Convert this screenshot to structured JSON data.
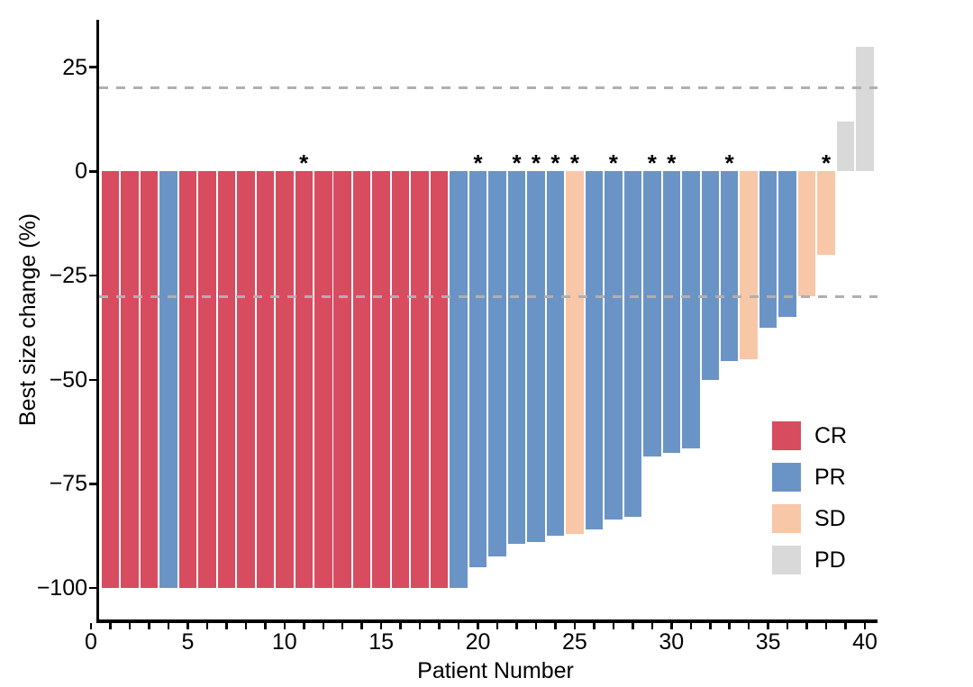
{
  "figure": {
    "background": "#ffffff",
    "star_symbol": "*"
  },
  "chart_data": {
    "type": "bar",
    "subtype": "waterfall",
    "title": "",
    "xlabel": "Patient Number",
    "ylabel": "Best size change (%)",
    "grid": "off",
    "legend_position": "inside-right",
    "x_axis": {
      "min": 0,
      "max": 40,
      "minor_tick_step": 1,
      "major_tick_step": 5,
      "major_tick_labels": [
        "0",
        "5",
        "10",
        "15",
        "20",
        "25",
        "30",
        "35",
        "40"
      ]
    },
    "y_axis": {
      "range": [
        -108,
        36
      ],
      "ticks": [
        {
          "label": "25",
          "value": 25
        },
        {
          "label": "0",
          "value": 0
        },
        {
          "label": "−25",
          "value": -25
        },
        {
          "label": "−50",
          "value": -50
        },
        {
          "label": "−75",
          "value": -75
        },
        {
          "label": "−100",
          "value": -100
        }
      ]
    },
    "reference_lines": [
      {
        "value": 20,
        "style": "dashed",
        "color": "#b0b0b0"
      },
      {
        "value": -30,
        "style": "dashed",
        "color": "#b0b0b0"
      }
    ],
    "legend": [
      {
        "code": "CR",
        "label": "CR",
        "color": "#d84c60"
      },
      {
        "code": "PR",
        "label": "PR",
        "color": "#6b94c6"
      },
      {
        "code": "SD",
        "label": "SD",
        "color": "#f8c7a7"
      },
      {
        "code": "PD",
        "label": "PD",
        "color": "#d9d9d9"
      }
    ],
    "colors_by_response": {
      "CR": "#d84c60",
      "PR": "#6b94c6",
      "SD": "#f8c7a7",
      "PD": "#d9d9d9"
    },
    "patients": [
      {
        "n": 1,
        "value": -100,
        "response": "CR",
        "star": false
      },
      {
        "n": 2,
        "value": -100,
        "response": "CR",
        "star": false
      },
      {
        "n": 3,
        "value": -100,
        "response": "CR",
        "star": false
      },
      {
        "n": 4,
        "value": -100,
        "response": "PR",
        "star": false
      },
      {
        "n": 5,
        "value": -100,
        "response": "CR",
        "star": false
      },
      {
        "n": 6,
        "value": -100,
        "response": "CR",
        "star": false
      },
      {
        "n": 7,
        "value": -100,
        "response": "CR",
        "star": false
      },
      {
        "n": 8,
        "value": -100,
        "response": "CR",
        "star": false
      },
      {
        "n": 9,
        "value": -100,
        "response": "CR",
        "star": false
      },
      {
        "n": 10,
        "value": -100,
        "response": "CR",
        "star": false
      },
      {
        "n": 11,
        "value": -100,
        "response": "CR",
        "star": true
      },
      {
        "n": 12,
        "value": -100,
        "response": "CR",
        "star": false
      },
      {
        "n": 13,
        "value": -100,
        "response": "CR",
        "star": false
      },
      {
        "n": 14,
        "value": -100,
        "response": "CR",
        "star": false
      },
      {
        "n": 15,
        "value": -100,
        "response": "CR",
        "star": false
      },
      {
        "n": 16,
        "value": -100,
        "response": "CR",
        "star": false
      },
      {
        "n": 17,
        "value": -100,
        "response": "CR",
        "star": false
      },
      {
        "n": 18,
        "value": -100,
        "response": "CR",
        "star": false
      },
      {
        "n": 19,
        "value": -100,
        "response": "PR",
        "star": false
      },
      {
        "n": 20,
        "value": -95,
        "response": "PR",
        "star": true
      },
      {
        "n": 21,
        "value": -92.5,
        "response": "PR",
        "star": false
      },
      {
        "n": 22,
        "value": -89.5,
        "response": "PR",
        "star": true
      },
      {
        "n": 23,
        "value": -89,
        "response": "PR",
        "star": true
      },
      {
        "n": 24,
        "value": -87.5,
        "response": "PR",
        "star": true
      },
      {
        "n": 25,
        "value": -87,
        "response": "SD",
        "star": true
      },
      {
        "n": 26,
        "value": -86,
        "response": "PR",
        "star": false
      },
      {
        "n": 27,
        "value": -83.5,
        "response": "PR",
        "star": true
      },
      {
        "n": 28,
        "value": -83,
        "response": "PR",
        "star": false
      },
      {
        "n": 29,
        "value": -68.5,
        "response": "PR",
        "star": true
      },
      {
        "n": 30,
        "value": -67.5,
        "response": "PR",
        "star": true
      },
      {
        "n": 31,
        "value": -66.5,
        "response": "PR",
        "star": false
      },
      {
        "n": 32,
        "value": -50,
        "response": "PR",
        "star": false
      },
      {
        "n": 33,
        "value": -45.5,
        "response": "PR",
        "star": true
      },
      {
        "n": 34,
        "value": -45,
        "response": "SD",
        "star": false
      },
      {
        "n": 35,
        "value": -37.5,
        "response": "PR",
        "star": false
      },
      {
        "n": 36,
        "value": -35,
        "response": "PR",
        "star": false
      },
      {
        "n": 37,
        "value": -30,
        "response": "SD",
        "star": false
      },
      {
        "n": 38,
        "value": -20,
        "response": "SD",
        "star": true
      },
      {
        "n": 39,
        "value": 12,
        "response": "PD",
        "star": false
      },
      {
        "n": 40,
        "value": 30,
        "response": "PD",
        "star": false
      }
    ]
  }
}
